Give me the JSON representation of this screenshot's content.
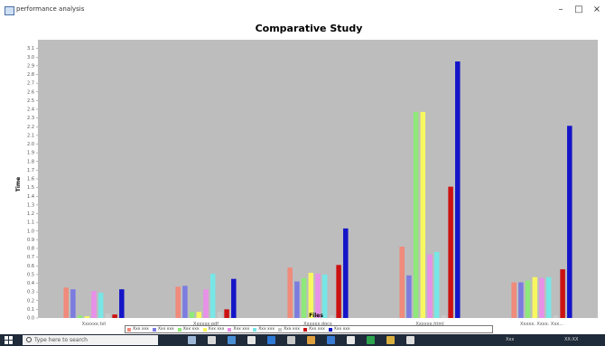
{
  "window": {
    "title": "performance analysis",
    "minimize": "–",
    "maximize": "□",
    "close": "×"
  },
  "chart_data": {
    "type": "bar",
    "title": "Comparative Study",
    "xlabel": "Files",
    "ylabel": "Time",
    "ylim": [
      0,
      3.2
    ],
    "yticks": [
      "0.0",
      "0.1",
      "0.2",
      "0.3",
      "0.4",
      "0.5",
      "0.6",
      "0.7",
      "0.8",
      "0.9",
      "1.0",
      "1.1",
      "1.2",
      "1.3",
      "1.4",
      "1.5",
      "1.6",
      "1.7",
      "1.8",
      "1.9",
      "2.0",
      "2.1",
      "2.2",
      "2.3",
      "2.4",
      "2.5",
      "2.6",
      "2.7",
      "2.8",
      "2.9",
      "3.0",
      "3.1"
    ],
    "grid": false,
    "legend_position": "bottom",
    "categories": [
      "Xxxxxx.txt",
      "Xxxxxx.pdf",
      "Xxxxxx.docx",
      "Xxxxxx.html",
      "Xxxxx, Xxxx, Xxx..."
    ],
    "series": [
      {
        "name": "Xxx xxx",
        "color": "#f08a7a",
        "values": [
          0.35,
          0.36,
          0.58,
          0.82,
          0.41
        ]
      },
      {
        "name": "Xxx xxx",
        "color": "#7b7be0",
        "values": [
          0.33,
          0.37,
          0.42,
          0.49,
          0.41
        ]
      },
      {
        "name": "Xxx xxx",
        "color": "#8ee87a",
        "values": [
          0.03,
          0.07,
          0.46,
          2.37,
          0.43
        ]
      },
      {
        "name": "Xxx xxx",
        "color": "#f7f760",
        "values": [
          0.02,
          0.07,
          0.52,
          2.37,
          0.47
        ]
      },
      {
        "name": "Xxx xxx",
        "color": "#e890e8",
        "values": [
          0.31,
          0.33,
          0.51,
          0.73,
          0.46
        ]
      },
      {
        "name": "Xxx xxx",
        "color": "#78e6e6",
        "values": [
          0.29,
          0.51,
          0.5,
          0.76,
          0.47
        ]
      },
      {
        "name": "Xxx xxx",
        "color": "#c8c8c8",
        "values": [
          0.05,
          0.07,
          0.03,
          0.03,
          0.03
        ]
      },
      {
        "name": "Xxx xxx",
        "color": "#cc1111",
        "values": [
          0.04,
          0.1,
          0.61,
          1.51,
          0.56
        ]
      },
      {
        "name": "Xxx xxx",
        "color": "#1414c8",
        "values": [
          0.33,
          0.45,
          1.03,
          2.95,
          2.21
        ]
      }
    ]
  },
  "taskbar": {
    "search_placeholder": "Type here to search",
    "tray_text": "Xxx",
    "clock": "XX:XX"
  }
}
